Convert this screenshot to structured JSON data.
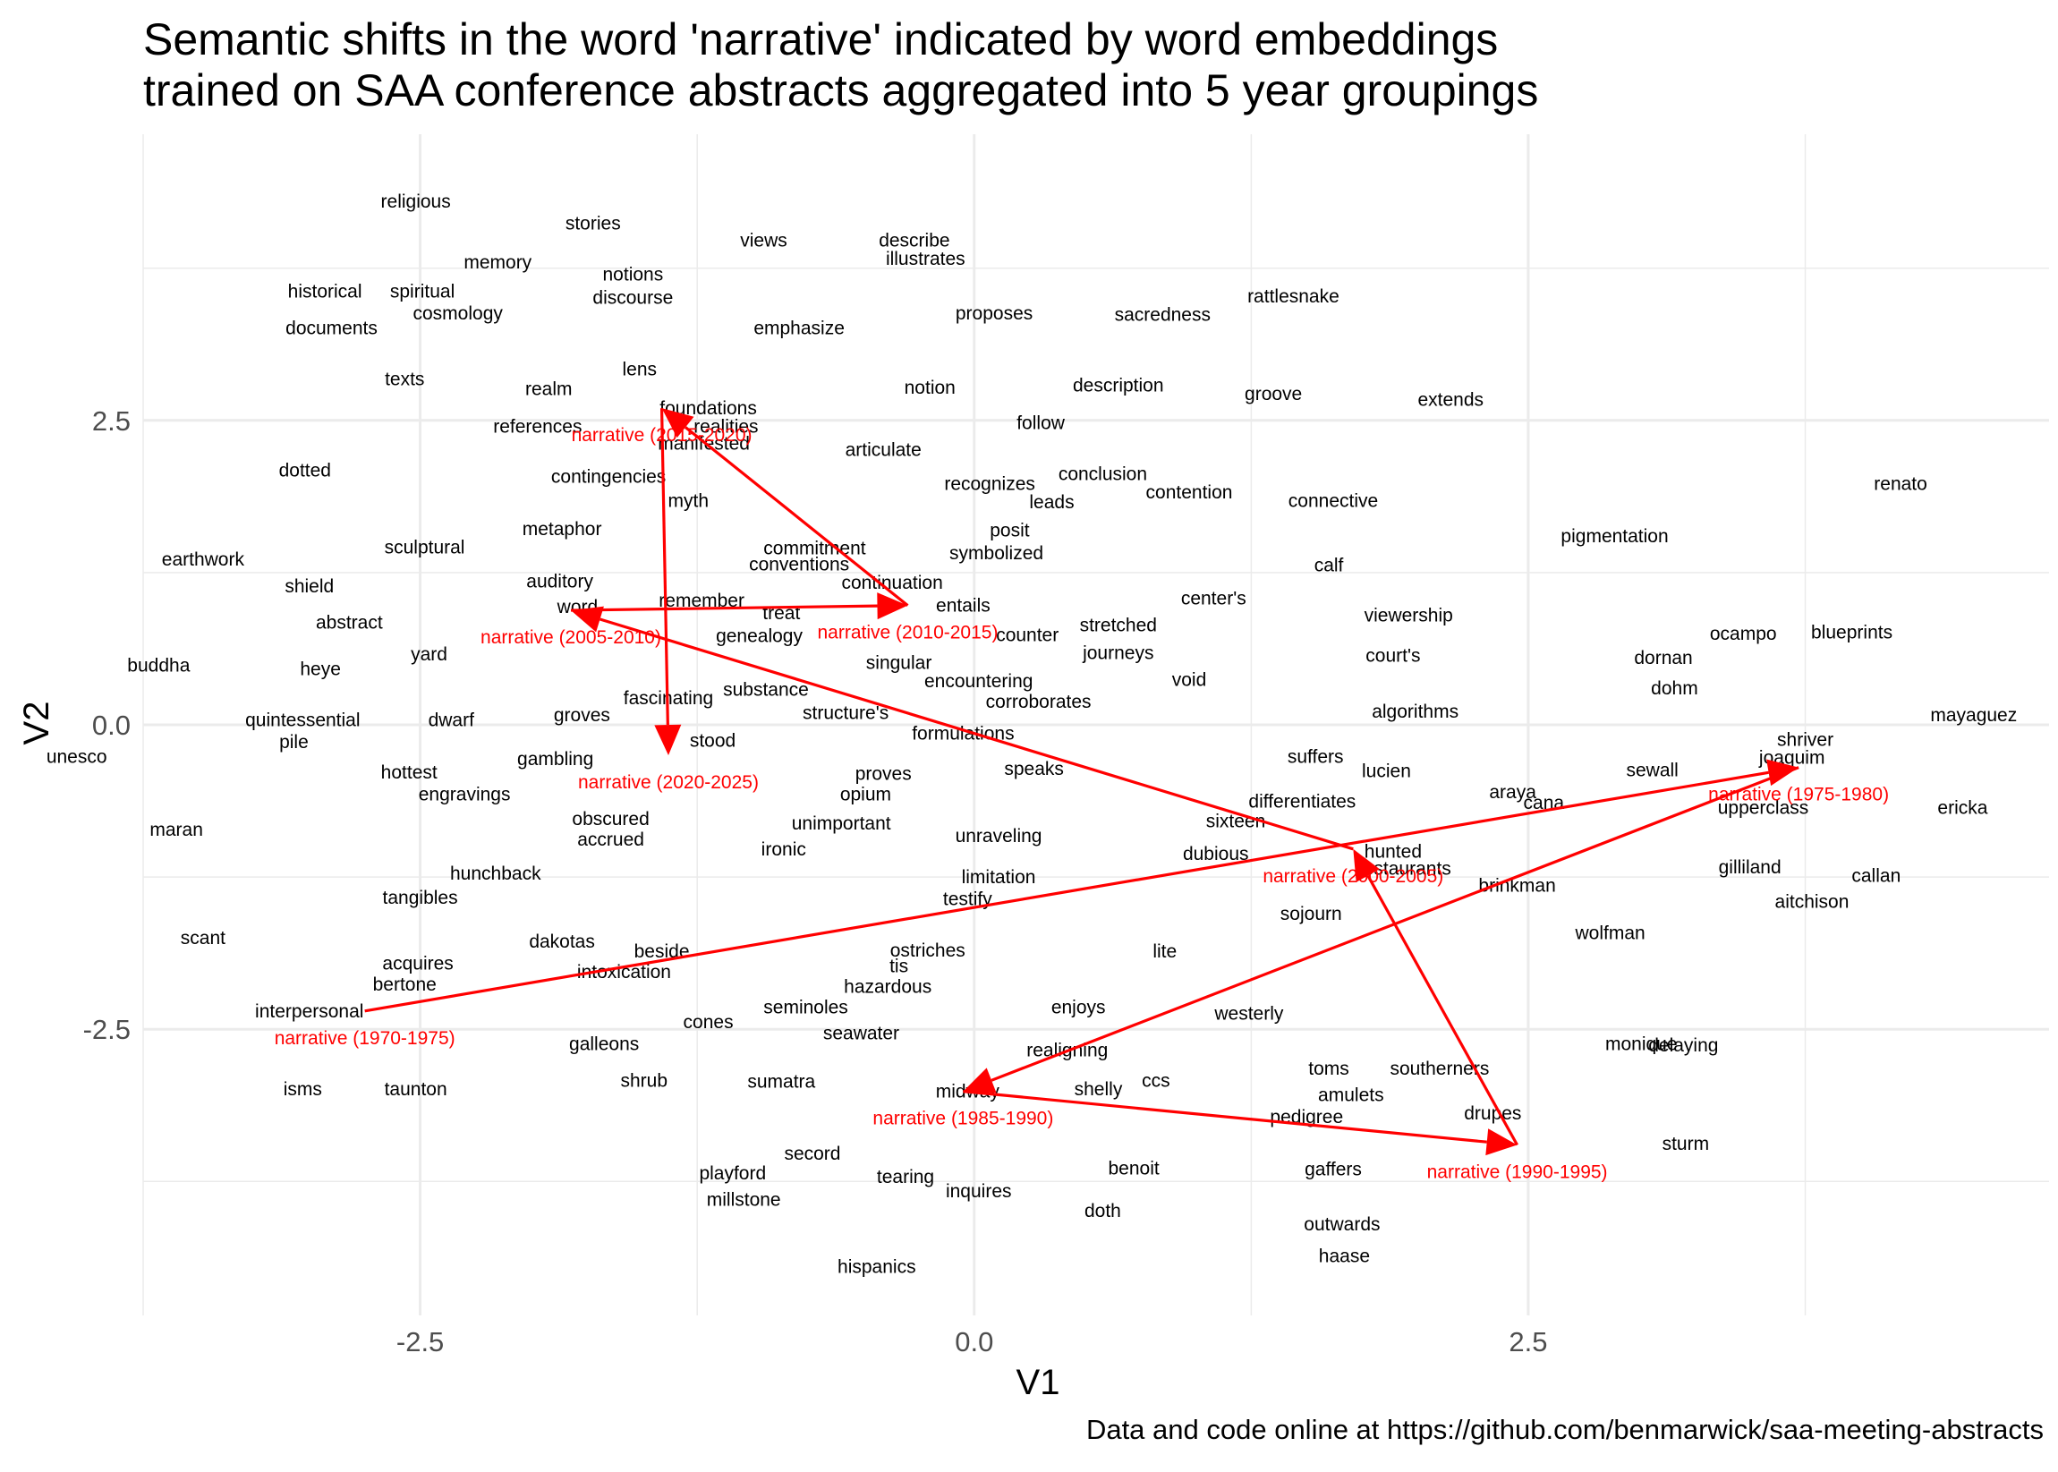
{
  "title_line1": "Semantic shifts in the word 'narrative' indicated by word embeddings",
  "title_line2": "trained on SAA conference abstracts aggregated into 5 year groupings",
  "caption": "Data and code online at https://github.com/benmarwick/saa-meeting-abstracts",
  "colors": {
    "arrow": "#ff0000",
    "highlight_text": "#ff0000",
    "text": "#000000",
    "grid": "#ebebeb",
    "tick": "#4d4d4d"
  },
  "chart_data": {
    "type": "scatter",
    "xlabel": "V1",
    "ylabel": "V2",
    "xlim": [
      -3.75,
      4.85
    ],
    "ylim": [
      -4.85,
      4.85
    ],
    "x_ticks": [
      -2.5,
      0.0,
      2.5
    ],
    "x_tick_labels": [
      "-2.5",
      "0.0",
      "2.5"
    ],
    "y_ticks": [
      -2.5,
      0.0,
      2.5
    ],
    "y_tick_labels": [
      "-2.5",
      "0.0",
      "2.5"
    ],
    "grid": true,
    "words": [
      {
        "label": "religious",
        "x": -2.52,
        "y": 4.3
      },
      {
        "label": "stories",
        "x": -1.72,
        "y": 4.12
      },
      {
        "label": "views",
        "x": -0.95,
        "y": 3.98
      },
      {
        "label": "describe",
        "x": -0.27,
        "y": 3.98
      },
      {
        "label": "illustrates",
        "x": -0.22,
        "y": 3.83
      },
      {
        "label": "memory",
        "x": -2.15,
        "y": 3.8
      },
      {
        "label": "historical",
        "x": -2.93,
        "y": 3.56
      },
      {
        "label": "spiritual",
        "x": -2.49,
        "y": 3.56
      },
      {
        "label": "notions",
        "x": -1.54,
        "y": 3.7
      },
      {
        "label": "discourse",
        "x": -1.54,
        "y": 3.51
      },
      {
        "label": "cosmology",
        "x": -2.33,
        "y": 3.38
      },
      {
        "label": "documents",
        "x": -2.9,
        "y": 3.26
      },
      {
        "label": "emphasize",
        "x": -0.79,
        "y": 3.26
      },
      {
        "label": "proposes",
        "x": 0.09,
        "y": 3.38
      },
      {
        "label": "sacredness",
        "x": 0.85,
        "y": 3.37
      },
      {
        "label": "rattlesnake",
        "x": 1.44,
        "y": 3.52
      },
      {
        "label": "texts",
        "x": -2.57,
        "y": 2.84
      },
      {
        "label": "lens",
        "x": -1.51,
        "y": 2.92
      },
      {
        "label": "realm",
        "x": -1.92,
        "y": 2.76
      },
      {
        "label": "notion",
        "x": -0.2,
        "y": 2.77
      },
      {
        "label": "description",
        "x": 0.65,
        "y": 2.79
      },
      {
        "label": "groove",
        "x": 1.35,
        "y": 2.72
      },
      {
        "label": "extends",
        "x": 2.15,
        "y": 2.67
      },
      {
        "label": "foundations",
        "x": -1.2,
        "y": 2.6
      },
      {
        "label": "realities",
        "x": -1.12,
        "y": 2.45
      },
      {
        "label": "references",
        "x": -1.97,
        "y": 2.45
      },
      {
        "label": "follow",
        "x": 0.3,
        "y": 2.48
      },
      {
        "label": "manifested",
        "x": -1.22,
        "y": 2.31
      },
      {
        "label": "articulate",
        "x": -0.41,
        "y": 2.26
      },
      {
        "label": "dotted",
        "x": -3.02,
        "y": 2.09
      },
      {
        "label": "contingencies",
        "x": -1.65,
        "y": 2.04
      },
      {
        "label": "conclusion",
        "x": 0.58,
        "y": 2.06
      },
      {
        "label": "recognizes",
        "x": 0.07,
        "y": 1.98
      },
      {
        "label": "renato",
        "x": 4.18,
        "y": 1.98
      },
      {
        "label": "connective",
        "x": 1.62,
        "y": 1.84
      },
      {
        "label": "myth",
        "x": -1.29,
        "y": 1.84
      },
      {
        "label": "leads",
        "x": 0.35,
        "y": 1.83
      },
      {
        "label": "contention",
        "x": 0.97,
        "y": 1.91
      },
      {
        "label": "metaphor",
        "x": -1.86,
        "y": 1.61
      },
      {
        "label": "posit",
        "x": 0.16,
        "y": 1.6
      },
      {
        "label": "pigmentation",
        "x": 2.89,
        "y": 1.55
      },
      {
        "label": "sculptural",
        "x": -2.48,
        "y": 1.46
      },
      {
        "label": "commitment",
        "x": -0.72,
        "y": 1.45
      },
      {
        "label": "symbolized",
        "x": 0.1,
        "y": 1.41
      },
      {
        "label": "conventions",
        "x": -0.79,
        "y": 1.32
      },
      {
        "label": "calf",
        "x": 1.6,
        "y": 1.31
      },
      {
        "label": "earthwork",
        "x": -3.48,
        "y": 1.36
      },
      {
        "label": "continuation",
        "x": -0.37,
        "y": 1.17
      },
      {
        "label": "auditory",
        "x": -1.87,
        "y": 1.18
      },
      {
        "label": "shield",
        "x": -3.0,
        "y": 1.14
      },
      {
        "label": "remember",
        "x": -1.23,
        "y": 1.02
      },
      {
        "label": "word",
        "x": -1.79,
        "y": 0.97
      },
      {
        "label": "center's",
        "x": 1.08,
        "y": 1.04
      },
      {
        "label": "entails",
        "x": -0.05,
        "y": 0.98
      },
      {
        "label": "treat",
        "x": -0.87,
        "y": 0.92
      },
      {
        "label": "viewership",
        "x": 1.96,
        "y": 0.9
      },
      {
        "label": "stretched",
        "x": 0.65,
        "y": 0.82
      },
      {
        "label": "abstract",
        "x": -2.82,
        "y": 0.84
      },
      {
        "label": "counter",
        "x": 0.24,
        "y": 0.74
      },
      {
        "label": "ocampo",
        "x": 3.47,
        "y": 0.75
      },
      {
        "label": "blueprints",
        "x": 3.96,
        "y": 0.76
      },
      {
        "label": "genealogy",
        "x": -0.97,
        "y": 0.73
      },
      {
        "label": "journeys",
        "x": 0.65,
        "y": 0.59
      },
      {
        "label": "court's",
        "x": 1.89,
        "y": 0.57
      },
      {
        "label": "dornan",
        "x": 3.11,
        "y": 0.55
      },
      {
        "label": "yard",
        "x": -2.46,
        "y": 0.58
      },
      {
        "label": "heye",
        "x": -2.95,
        "y": 0.46
      },
      {
        "label": "buddha",
        "x": -3.68,
        "y": 0.49
      },
      {
        "label": "singular",
        "x": -0.34,
        "y": 0.51
      },
      {
        "label": "encountering",
        "x": 0.02,
        "y": 0.36
      },
      {
        "label": "void",
        "x": 0.97,
        "y": 0.37
      },
      {
        "label": "dohm",
        "x": 3.16,
        "y": 0.3
      },
      {
        "label": "substance",
        "x": -0.94,
        "y": 0.29
      },
      {
        "label": "fascinating",
        "x": -1.38,
        "y": 0.22
      },
      {
        "label": "corroborates",
        "x": 0.29,
        "y": 0.19
      },
      {
        "label": "algorithms",
        "x": 1.99,
        "y": 0.11
      },
      {
        "label": "structure's",
        "x": -0.58,
        "y": 0.1
      },
      {
        "label": "groves",
        "x": -1.77,
        "y": 0.08
      },
      {
        "label": "quintessential",
        "x": -3.03,
        "y": 0.04
      },
      {
        "label": "dwarf",
        "x": -2.36,
        "y": 0.04
      },
      {
        "label": "mayaguez",
        "x": 4.51,
        "y": 0.08
      },
      {
        "label": "formulations",
        "x": -0.05,
        "y": -0.07
      },
      {
        "label": "pile",
        "x": -3.07,
        "y": -0.14
      },
      {
        "label": "stood",
        "x": -1.18,
        "y": -0.13
      },
      {
        "label": "shriver",
        "x": 3.75,
        "y": -0.12
      },
      {
        "label": "unesco",
        "x": -4.05,
        "y": -0.26
      },
      {
        "label": "joaquim",
        "x": 3.69,
        "y": -0.27
      },
      {
        "label": "suffers",
        "x": 1.54,
        "y": -0.26
      },
      {
        "label": "gambling",
        "x": -1.89,
        "y": -0.28
      },
      {
        "label": "lucien",
        "x": 1.86,
        "y": -0.38
      },
      {
        "label": "speaks",
        "x": 0.27,
        "y": -0.36
      },
      {
        "label": "sewall",
        "x": 3.06,
        "y": -0.37
      },
      {
        "label": "hottest",
        "x": -2.55,
        "y": -0.39
      },
      {
        "label": "proves",
        "x": -0.41,
        "y": -0.4
      },
      {
        "label": "araya",
        "x": 2.43,
        "y": -0.55
      },
      {
        "label": "opium",
        "x": -0.49,
        "y": -0.57
      },
      {
        "label": "engravings",
        "x": -2.3,
        "y": -0.57
      },
      {
        "label": "differentiates",
        "x": 1.48,
        "y": -0.63
      },
      {
        "label": "cana",
        "x": 2.57,
        "y": -0.64
      },
      {
        "label": "upperclass",
        "x": 3.56,
        "y": -0.68
      },
      {
        "label": "ericka",
        "x": 4.46,
        "y": -0.68
      },
      {
        "label": "obscured",
        "x": -1.64,
        "y": -0.77
      },
      {
        "label": "sixteen",
        "x": 1.18,
        "y": -0.79
      },
      {
        "label": "unimportant",
        "x": -0.6,
        "y": -0.81
      },
      {
        "label": "accrued",
        "x": -1.64,
        "y": -0.94
      },
      {
        "label": "unraveling",
        "x": 0.11,
        "y": -0.91
      },
      {
        "label": "ironic",
        "x": -0.86,
        "y": -1.02
      },
      {
        "label": "dubious",
        "x": 1.09,
        "y": -1.06
      },
      {
        "label": "hunted",
        "x": 1.89,
        "y": -1.04
      },
      {
        "label": "restaurants",
        "x": 1.94,
        "y": -1.18
      },
      {
        "label": "gilliland",
        "x": 3.5,
        "y": -1.17
      },
      {
        "label": "maran",
        "x": -3.6,
        "y": -0.86
      },
      {
        "label": "hunchback",
        "x": -2.16,
        "y": -1.22
      },
      {
        "label": "limitation",
        "x": 0.11,
        "y": -1.25
      },
      {
        "label": "callan",
        "x": 4.07,
        "y": -1.24
      },
      {
        "label": "brinkman",
        "x": 2.45,
        "y": -1.32
      },
      {
        "label": "tangibles",
        "x": -2.5,
        "y": -1.42
      },
      {
        "label": "testify",
        "x": -0.03,
        "y": -1.43
      },
      {
        "label": "aitchison",
        "x": 3.78,
        "y": -1.45
      },
      {
        "label": "sojourn",
        "x": 1.52,
        "y": -1.55
      },
      {
        "label": "wolfman",
        "x": 2.87,
        "y": -1.71
      },
      {
        "label": "scant",
        "x": -3.48,
        "y": -1.75
      },
      {
        "label": "dakotas",
        "x": -1.86,
        "y": -1.78
      },
      {
        "label": "ostriches",
        "x": -0.21,
        "y": -1.85
      },
      {
        "label": "lite",
        "x": 0.86,
        "y": -1.86
      },
      {
        "label": "beside",
        "x": -1.41,
        "y": -1.86
      },
      {
        "label": "acquires",
        "x": -2.51,
        "y": -1.96
      },
      {
        "label": "tis",
        "x": -0.34,
        "y": -1.98
      },
      {
        "label": "intoxication",
        "x": -1.58,
        "y": -2.03
      },
      {
        "label": "bertone",
        "x": -2.57,
        "y": -2.13
      },
      {
        "label": "hazardous",
        "x": -0.39,
        "y": -2.15
      },
      {
        "label": "enjoys",
        "x": 0.47,
        "y": -2.32
      },
      {
        "label": "seminoles",
        "x": -0.76,
        "y": -2.32
      },
      {
        "label": "interpersonal",
        "x": -3.0,
        "y": -2.35
      },
      {
        "label": "westerly",
        "x": 1.24,
        "y": -2.37
      },
      {
        "label": "cones",
        "x": -1.2,
        "y": -2.44
      },
      {
        "label": "seawater",
        "x": -0.51,
        "y": -2.53
      },
      {
        "label": "galleons",
        "x": -1.67,
        "y": -2.62
      },
      {
        "label": "monique",
        "x": 3.01,
        "y": -2.62
      },
      {
        "label": "delaying",
        "x": 3.2,
        "y": -2.63
      },
      {
        "label": "realigning",
        "x": 0.42,
        "y": -2.67
      },
      {
        "label": "toms",
        "x": 1.6,
        "y": -2.82
      },
      {
        "label": "southerners",
        "x": 2.1,
        "y": -2.82
      },
      {
        "label": "shrub",
        "x": -1.49,
        "y": -2.92
      },
      {
        "label": "sumatra",
        "x": -0.87,
        "y": -2.93
      },
      {
        "label": "ccs",
        "x": 0.82,
        "y": -2.92
      },
      {
        "label": "isms",
        "x": -3.03,
        "y": -2.99
      },
      {
        "label": "taunton",
        "x": -2.52,
        "y": -2.99
      },
      {
        "label": "shelly",
        "x": 0.56,
        "y": -2.99
      },
      {
        "label": "midway",
        "x": -0.03,
        "y": -3.01
      },
      {
        "label": "amulets",
        "x": 1.7,
        "y": -3.04
      },
      {
        "label": "pedigree",
        "x": 1.5,
        "y": -3.22
      },
      {
        "label": "drupes",
        "x": 2.34,
        "y": -3.19
      },
      {
        "label": "secord",
        "x": -0.73,
        "y": -3.52
      },
      {
        "label": "sturm",
        "x": 3.21,
        "y": -3.44
      },
      {
        "label": "benoit",
        "x": 0.72,
        "y": -3.64
      },
      {
        "label": "playford",
        "x": -1.09,
        "y": -3.68
      },
      {
        "label": "tearing",
        "x": -0.31,
        "y": -3.71
      },
      {
        "label": "gaffers",
        "x": 1.62,
        "y": -3.65
      },
      {
        "label": "inquires",
        "x": 0.02,
        "y": -3.83
      },
      {
        "label": "millstone",
        "x": -1.04,
        "y": -3.9
      },
      {
        "label": "doth",
        "x": 0.58,
        "y": -3.99
      },
      {
        "label": "outwards",
        "x": 1.66,
        "y": -4.1
      },
      {
        "label": "haase",
        "x": 1.67,
        "y": -4.36
      },
      {
        "label": "hispanics",
        "x": -0.44,
        "y": -4.45
      }
    ],
    "series": [
      {
        "name": "narrative",
        "points": [
          {
            "label": "narrative (1970-1975)",
            "period": "1970-1975",
            "x": -2.75,
            "y": -2.35
          },
          {
            "label": "narrative (1975-1980)",
            "period": "1975-1980",
            "x": 3.72,
            "y": -0.35
          },
          {
            "label": "narrative (1985-1990)",
            "period": "1985-1990",
            "x": -0.05,
            "y": -3.01
          },
          {
            "label": "narrative (1990-1995)",
            "period": "1990-1995",
            "x": 2.45,
            "y": -3.45
          },
          {
            "label": "narrative (2000-2005)",
            "period": "2000-2005",
            "x": 1.71,
            "y": -1.02
          },
          {
            "label": "narrative (2005-2010)",
            "period": "2005-2010",
            "x": -1.82,
            "y": 0.94
          },
          {
            "label": "narrative (2010-2015)",
            "period": "2010-2015",
            "x": -0.3,
            "y": 0.98
          },
          {
            "label": "narrative (2015-2020)",
            "period": "2015-2020",
            "x": -1.41,
            "y": 2.6
          },
          {
            "label": "narrative (2020-2025)",
            "period": "2020-2025",
            "x": -1.38,
            "y": -0.25
          }
        ]
      }
    ]
  }
}
